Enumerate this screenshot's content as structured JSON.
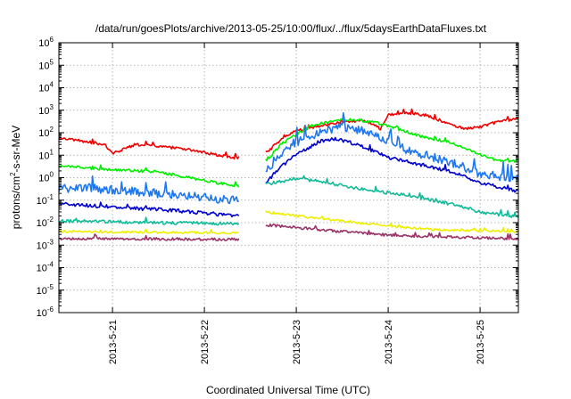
{
  "chart_data": {
    "type": "line",
    "title": "/data/run/goesPlots/archive/2013-05-25/10:00/flux/../flux/5daysEarthDataFluxes.txt",
    "xlabel": "Coordinated Universal Time (UTC)",
    "ylabel": {
      "base": "protons/cm",
      "sup": "2",
      "rest": "-s-sr-MeV"
    },
    "x_scale": "time",
    "xlim": [
      "2013-05-20 10:00",
      "2013-05-25 10:00"
    ],
    "x_ticks": [
      "2013-5-21",
      "2013-5-22",
      "2013-5-23",
      "2013-5-24",
      "2013-5-25"
    ],
    "y_scale": "log",
    "ylim": [
      1e-06,
      1000000.0
    ],
    "y_ticks": [
      {
        "base": "10",
        "exp": "6"
      },
      {
        "base": "10",
        "exp": "5"
      },
      {
        "base": "10",
        "exp": "4"
      },
      {
        "base": "10",
        "exp": "3"
      },
      {
        "base": "10",
        "exp": "2"
      },
      {
        "base": "10",
        "exp": "1"
      },
      {
        "base": "10",
        "exp": "0"
      },
      {
        "base": "10",
        "exp": "-1"
      },
      {
        "base": "10",
        "exp": "-2"
      },
      {
        "base": "10",
        "exp": "-3"
      },
      {
        "base": "10",
        "exp": "-4"
      },
      {
        "base": "10",
        "exp": "-5"
      },
      {
        "base": "10",
        "exp": "-6"
      }
    ],
    "grid": true,
    "data_gap": [
      "2013-05-22 09:00",
      "2013-05-22 16:00"
    ],
    "series": [
      {
        "color": "#ee0000",
        "noise": 0.06,
        "seed": 1,
        "points": [
          [
            "2013-05-20 10:00",
            60
          ],
          [
            "2013-05-20 22:00",
            30
          ],
          [
            "2013-05-21 00:00",
            12
          ],
          [
            "2013-05-21 06:00",
            30
          ],
          [
            "2013-05-21 18:00",
            20
          ],
          [
            "2013-05-22 09:00",
            7
          ],
          [
            "2013-05-22 16:00",
            12
          ],
          [
            "2013-05-22 20:00",
            50
          ],
          [
            "2013-05-23 00:00",
            120
          ],
          [
            "2013-05-23 06:00",
            200
          ],
          [
            "2013-05-23 12:00",
            300
          ],
          [
            "2013-05-23 18:00",
            350
          ],
          [
            "2013-05-23 22:00",
            150
          ],
          [
            "2013-05-24 00:00",
            600
          ],
          [
            "2013-05-24 04:00",
            800
          ],
          [
            "2013-05-24 10:00",
            600
          ],
          [
            "2013-05-24 16:00",
            250
          ],
          [
            "2013-05-24 20:00",
            150
          ],
          [
            "2013-05-25 00:00",
            180
          ],
          [
            "2013-05-25 06:00",
            350
          ],
          [
            "2013-05-25 10:00",
            400
          ]
        ]
      },
      {
        "color": "#00ee00",
        "noise": 0.06,
        "seed": 2,
        "points": [
          [
            "2013-05-20 10:00",
            3.5
          ],
          [
            "2013-05-20 20:00",
            2.5
          ],
          [
            "2013-05-21 12:00",
            1.8
          ],
          [
            "2013-05-22 09:00",
            0.4
          ],
          [
            "2013-05-22 16:00",
            5
          ],
          [
            "2013-05-22 20:00",
            30
          ],
          [
            "2013-05-23 00:00",
            80
          ],
          [
            "2013-05-23 04:00",
            200
          ],
          [
            "2013-05-23 10:00",
            350
          ],
          [
            "2013-05-23 16:00",
            380
          ],
          [
            "2013-05-23 22:00",
            250
          ],
          [
            "2013-05-24 04:00",
            120
          ],
          [
            "2013-05-24 10:00",
            60
          ],
          [
            "2013-05-24 16:00",
            40
          ],
          [
            "2013-05-24 22:00",
            15
          ],
          [
            "2013-05-25 04:00",
            6
          ],
          [
            "2013-05-25 10:00",
            5.5
          ]
        ]
      },
      {
        "color": "#1f77ee",
        "noise": 0.2,
        "seed": 3,
        "points": [
          [
            "2013-05-20 10:00",
            0.3
          ],
          [
            "2013-05-20 18:00",
            0.35
          ],
          [
            "2013-05-21 12:00",
            0.2
          ],
          [
            "2013-05-22 09:00",
            0.1
          ],
          [
            "2013-05-22 16:00",
            2
          ],
          [
            "2013-05-22 20:00",
            12
          ],
          [
            "2013-05-23 00:00",
            40
          ],
          [
            "2013-05-23 06:00",
            100
          ],
          [
            "2013-05-23 12:00",
            180
          ],
          [
            "2013-05-23 18:00",
            120
          ],
          [
            "2013-05-24 00:00",
            40
          ],
          [
            "2013-05-24 06:00",
            15
          ],
          [
            "2013-05-24 12:00",
            8
          ],
          [
            "2013-05-24 18:00",
            4
          ],
          [
            "2013-05-25 00:00",
            1.5
          ],
          [
            "2013-05-25 10:00",
            0.9
          ]
        ]
      },
      {
        "color": "#0000cc",
        "noise": 0.08,
        "seed": 4,
        "points": [
          [
            "2013-05-20 10:00",
            0.07
          ],
          [
            "2013-05-21 00:00",
            0.05
          ],
          [
            "2013-05-21 16:00",
            0.035
          ],
          [
            "2013-05-22 09:00",
            0.02
          ],
          [
            "2013-05-22 16:00",
            0.6
          ],
          [
            "2013-05-22 20:00",
            3
          ],
          [
            "2013-05-23 00:00",
            10
          ],
          [
            "2013-05-23 06:00",
            40
          ],
          [
            "2013-05-23 10:00",
            55
          ],
          [
            "2013-05-23 16:00",
            30
          ],
          [
            "2013-05-24 00:00",
            8
          ],
          [
            "2013-05-24 08:00",
            4
          ],
          [
            "2013-05-24 16:00",
            2
          ],
          [
            "2013-05-25 00:00",
            0.6
          ],
          [
            "2013-05-25 10:00",
            0.25
          ]
        ]
      },
      {
        "color": "#11bb99",
        "noise": 0.07,
        "seed": 5,
        "points": [
          [
            "2013-05-20 10:00",
            0.012
          ],
          [
            "2013-05-21 12:00",
            0.01
          ],
          [
            "2013-05-22 09:00",
            0.009
          ],
          [
            "2013-05-22 16:00",
            0.5
          ],
          [
            "2013-05-23 00:00",
            0.9
          ],
          [
            "2013-05-23 06:00",
            0.7
          ],
          [
            "2013-05-23 18:00",
            0.3
          ],
          [
            "2013-05-24 06:00",
            0.15
          ],
          [
            "2013-05-24 18:00",
            0.06
          ],
          [
            "2013-05-25 00:00",
            0.03
          ],
          [
            "2013-05-25 10:00",
            0.018
          ]
        ]
      },
      {
        "color": "#eeee00",
        "noise": 0.05,
        "seed": 6,
        "points": [
          [
            "2013-05-20 10:00",
            0.004
          ],
          [
            "2013-05-22 09:00",
            0.0035
          ],
          [
            "2013-05-22 16:00",
            0.03
          ],
          [
            "2013-05-23 00:00",
            0.02
          ],
          [
            "2013-05-23 12:00",
            0.012
          ],
          [
            "2013-05-24 00:00",
            0.007
          ],
          [
            "2013-05-24 12:00",
            0.005
          ],
          [
            "2013-05-25 10:00",
            0.004
          ]
        ]
      },
      {
        "color": "#993366",
        "noise": 0.06,
        "seed": 7,
        "points": [
          [
            "2013-05-20 10:00",
            0.002
          ],
          [
            "2013-05-22 09:00",
            0.0018
          ],
          [
            "2013-05-22 16:00",
            0.008
          ],
          [
            "2013-05-23 00:00",
            0.006
          ],
          [
            "2013-05-23 12:00",
            0.004
          ],
          [
            "2013-05-24 00:00",
            0.0028
          ],
          [
            "2013-05-25 10:00",
            0.0019
          ]
        ]
      }
    ]
  }
}
